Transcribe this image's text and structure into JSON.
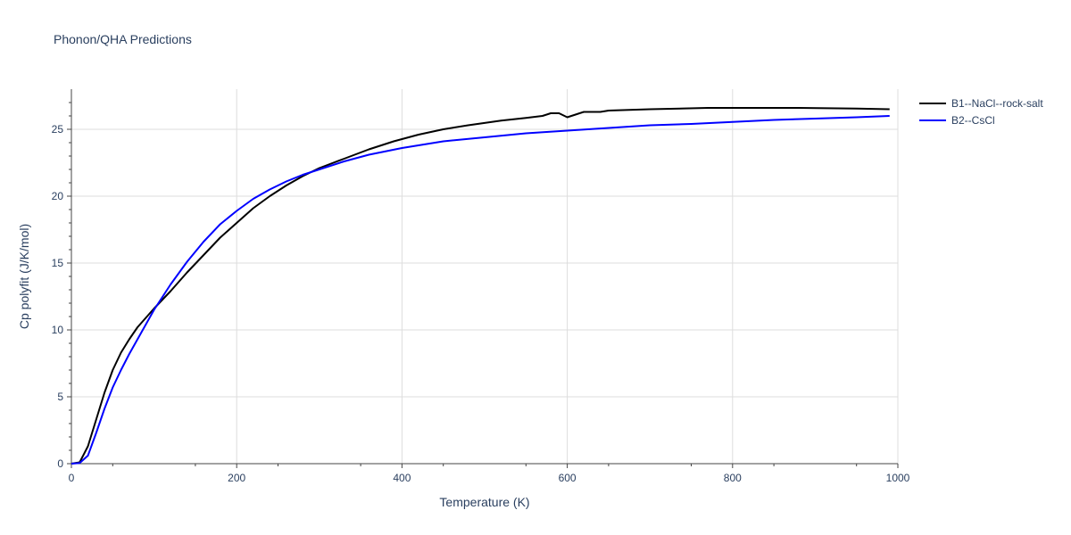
{
  "chart_data": {
    "type": "line",
    "title": "Phonon/QHA Predictions",
    "xlabel": "Temperature (K)",
    "ylabel": "Cp polyfit (J/K/mol)",
    "xlim": [
      0,
      1000
    ],
    "ylim": [
      0,
      28
    ],
    "x_ticks": [
      0,
      200,
      400,
      600,
      800,
      1000
    ],
    "y_ticks": [
      0,
      5,
      10,
      15,
      20,
      25
    ],
    "grid": true,
    "legend_position": "top-right",
    "series": [
      {
        "name": "B1--NaCl--rock-salt",
        "color": "#000000",
        "x": [
          0,
          10,
          20,
          30,
          40,
          50,
          60,
          70,
          80,
          90,
          100,
          120,
          140,
          160,
          180,
          200,
          220,
          240,
          260,
          280,
          300,
          330,
          360,
          390,
          420,
          450,
          480,
          520,
          550,
          570,
          580,
          590,
          600,
          610,
          620,
          640,
          650,
          700,
          770,
          800,
          880,
          950,
          990
        ],
        "y": [
          0,
          0.1,
          1.3,
          3.3,
          5.3,
          7.0,
          8.3,
          9.3,
          10.2,
          10.9,
          11.6,
          12.9,
          14.3,
          15.6,
          16.9,
          18.0,
          19.1,
          20.0,
          20.8,
          21.5,
          22.1,
          22.8,
          23.5,
          24.1,
          24.6,
          25.0,
          25.3,
          25.65,
          25.85,
          26.0,
          26.2,
          26.2,
          25.9,
          26.1,
          26.3,
          26.3,
          26.4,
          26.5,
          26.6,
          26.6,
          26.6,
          26.55,
          26.5
        ]
      },
      {
        "name": "B2--CsCl",
        "color": "#0000ff",
        "x": [
          0,
          10,
          20,
          30,
          40,
          50,
          60,
          70,
          80,
          90,
          100,
          120,
          140,
          160,
          180,
          200,
          220,
          240,
          260,
          280,
          300,
          330,
          360,
          400,
          450,
          500,
          550,
          600,
          650,
          700,
          750,
          800,
          850,
          900,
          950,
          990
        ],
        "y": [
          0,
          0.05,
          0.6,
          2.3,
          4.1,
          5.7,
          7.0,
          8.2,
          9.3,
          10.4,
          11.5,
          13.4,
          15.1,
          16.6,
          17.9,
          18.9,
          19.8,
          20.5,
          21.1,
          21.6,
          22.0,
          22.6,
          23.1,
          23.6,
          24.1,
          24.4,
          24.7,
          24.9,
          25.1,
          25.3,
          25.4,
          25.55,
          25.7,
          25.8,
          25.9,
          26.0
        ]
      }
    ]
  }
}
